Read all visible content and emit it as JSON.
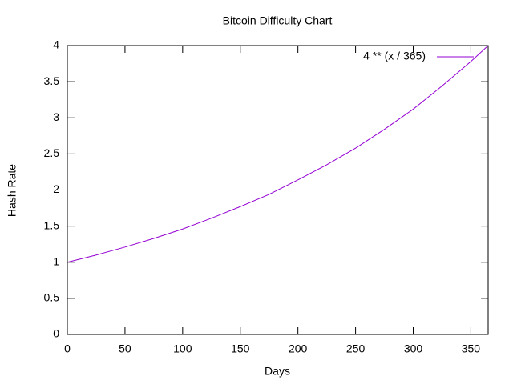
{
  "chart_data": {
    "type": "line",
    "title": "Bitcoin Difficulty Chart",
    "x_label": "Days",
    "y_label": "Hash Rate",
    "x": [
      0,
      25,
      50,
      75,
      100,
      125,
      150,
      175,
      200,
      225,
      250,
      275,
      300,
      325,
      350,
      365
    ],
    "series": [
      {
        "name": "4 ** (x / 365)",
        "color": "#9400d3",
        "values": [
          1,
          1.1,
          1.21,
          1.33,
          1.46,
          1.61,
          1.77,
          1.94,
          2.14,
          2.35,
          2.58,
          2.84,
          3.12,
          3.44,
          3.78,
          4
        ]
      }
    ],
    "xlim": [
      0,
      365
    ],
    "xticks": [
      0,
      50,
      100,
      150,
      200,
      250,
      300,
      350
    ],
    "ylim": [
      0,
      4
    ],
    "yticks": [
      0,
      0.5,
      1,
      1.5,
      2,
      2.5,
      3,
      3.5,
      4
    ],
    "grid": false,
    "legend": "top-right"
  }
}
